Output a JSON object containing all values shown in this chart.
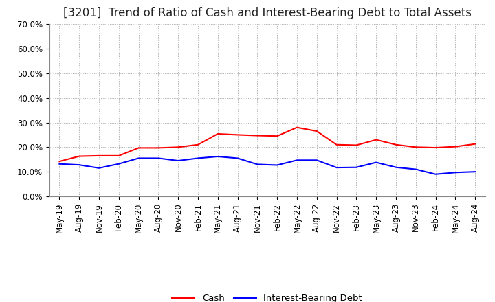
{
  "title": "[3201]  Trend of Ratio of Cash and Interest-Bearing Debt to Total Assets",
  "x_labels": [
    "May-19",
    "Aug-19",
    "Nov-19",
    "Feb-20",
    "May-20",
    "Aug-20",
    "Nov-20",
    "Feb-21",
    "May-21",
    "Aug-21",
    "Nov-21",
    "Feb-22",
    "May-22",
    "Aug-22",
    "Nov-22",
    "Feb-23",
    "May-23",
    "Aug-23",
    "Nov-23",
    "Feb-24",
    "May-24",
    "Aug-24"
  ],
  "cash": [
    0.142,
    0.163,
    0.165,
    0.165,
    0.197,
    0.197,
    0.2,
    0.21,
    0.254,
    0.25,
    0.247,
    0.245,
    0.28,
    0.265,
    0.21,
    0.208,
    0.23,
    0.21,
    0.2,
    0.198,
    0.202,
    0.213
  ],
  "interest_bearing_debt": [
    0.132,
    0.128,
    0.115,
    0.132,
    0.155,
    0.155,
    0.145,
    0.155,
    0.162,
    0.155,
    0.13,
    0.127,
    0.147,
    0.147,
    0.117,
    0.118,
    0.138,
    0.118,
    0.11,
    0.09,
    0.097,
    0.1
  ],
  "cash_color": "#FF0000",
  "debt_color": "#0000FF",
  "ylim": [
    0.0,
    0.7
  ],
  "yticks": [
    0.0,
    0.1,
    0.2,
    0.3,
    0.4,
    0.5,
    0.6,
    0.7
  ],
  "background_color": "#FFFFFF",
  "grid_color": "#AAAAAA",
  "legend_cash": "Cash",
  "legend_debt": "Interest-Bearing Debt",
  "title_fontsize": 12,
  "tick_fontsize": 8.5,
  "legend_fontsize": 9.5
}
